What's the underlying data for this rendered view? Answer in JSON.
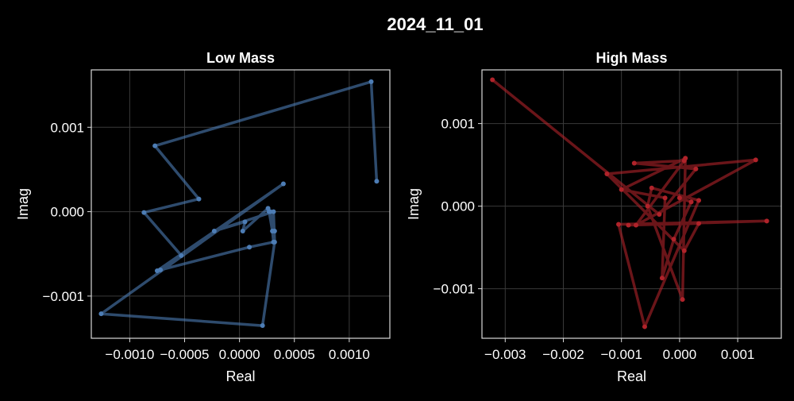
{
  "figure": {
    "title": "2024_11_01"
  },
  "chart_data": [
    {
      "type": "line",
      "title": "Low Mass",
      "xlabel": "Real",
      "ylabel": "Imag",
      "xlim": [
        -0.00135,
        0.00137
      ],
      "ylim": [
        -0.0015,
        0.00168
      ],
      "xticks": [
        -0.001,
        -0.0005,
        0.0,
        0.0005,
        0.001
      ],
      "xtick_labels": [
        "−0.0010",
        "−0.0005",
        "0.0000",
        "0.0005",
        "0.0010"
      ],
      "yticks": [
        -0.001,
        0.0,
        0.001
      ],
      "ytick_labels": [
        "−0.001",
        "0.000",
        "0.001"
      ],
      "grid": true,
      "series": [
        {
          "color": "#4d7db5",
          "x": [
            0.00125,
            0.0012,
            -0.00077,
            -0.00037,
            -0.00087,
            -0.00053,
            -0.00075,
            0.0004,
            -0.00126,
            0.00021,
            0.00032,
            0.00031,
            -0.00023,
            5e-05,
            3e-05,
            0.00026,
            0.00032,
            0.00028,
            0.00027,
            0.0003,
            0.00031,
            9e-05,
            -0.00072
          ],
          "y": [
            0.00036,
            0.00154,
            0.00078,
            0.00015,
            -1e-05,
            -0.00052,
            -0.0007,
            0.00033,
            -0.00121,
            -0.00135,
            -0.00036,
            0.0,
            -0.00023,
            -0.00012,
            -0.00023,
            4e-05,
            -0.00023,
            0.0,
            0.0,
            -0.00023,
            -0.00036,
            -0.00042,
            -0.00069
          ]
        }
      ]
    },
    {
      "type": "line",
      "title": "High Mass",
      "xlabel": "Real",
      "ylabel": "Imag",
      "xlim": [
        -0.0034,
        0.00175
      ],
      "ylim": [
        -0.0016,
        0.00165
      ],
      "xticks": [
        -0.003,
        -0.002,
        -0.001,
        0.0,
        0.001
      ],
      "xtick_labels": [
        "−0.003",
        "−0.002",
        "−0.001",
        "0.000",
        "0.001"
      ],
      "yticks": [
        -0.001,
        0.0,
        0.001
      ],
      "ytick_labels": [
        "−0.001",
        "0.000",
        "0.001"
      ],
      "grid": true,
      "series": [
        {
          "color": "#b0232a",
          "x": [
            -0.00322,
            -0.00035,
            0.00028,
            -0.00078,
            8e-05,
            -0.00075,
            0.00131,
            -0.00125,
            8e-05,
            0.00033,
            -0.00088,
            0.0015,
            -0.00105,
            -0.0006,
            0.00033,
            -0.00048,
            -0.00055,
            5e-05,
            0.0001,
            -0.001,
            -0.00025,
            -0.0003,
            -0.0001,
            0.0002,
            0.0
          ],
          "y": [
            0.00153,
            -0.0001,
            0.00045,
            0.00052,
            0.00055,
            -0.00023,
            0.00056,
            0.00039,
            -0.00054,
            -0.00021,
            -0.00023,
            -0.00018,
            -0.00022,
            -0.00146,
            7e-05,
            0.00022,
            0.0,
            -0.00113,
            0.00058,
            0.0002,
            0.0001,
            -0.00087,
            -0.0004,
            5e-05,
            0.0001
          ]
        }
      ]
    }
  ]
}
